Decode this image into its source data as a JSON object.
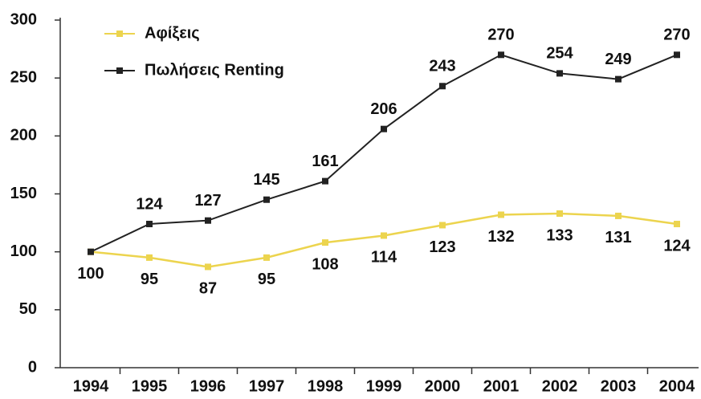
{
  "chart_data": {
    "type": "line",
    "categories": [
      "1994",
      "1995",
      "1996",
      "1997",
      "1998",
      "1999",
      "2000",
      "2001",
      "2002",
      "2003",
      "2004"
    ],
    "series": [
      {
        "name": "Αφίξεις",
        "color": "#ecd44e",
        "values": [
          100,
          95,
          87,
          95,
          108,
          114,
          123,
          132,
          133,
          131,
          124
        ]
      },
      {
        "name": "Πωλήσεις Renting",
        "color": "#222222",
        "values": [
          100,
          124,
          127,
          145,
          161,
          206,
          243,
          270,
          254,
          249,
          270
        ]
      }
    ],
    "ylim": [
      0,
      300
    ],
    "yticks": [
      0,
      50,
      100,
      150,
      200,
      250,
      300
    ],
    "legend": "upper left"
  }
}
